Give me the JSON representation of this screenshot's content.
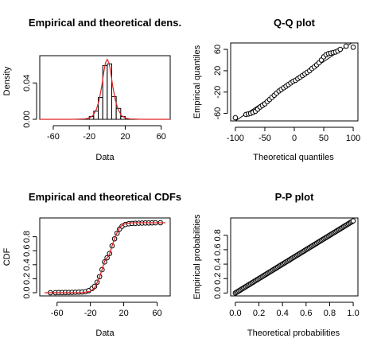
{
  "chart_data": [
    {
      "type": "bar",
      "title": "Empirical and theoretical dens.",
      "xlabel": "Data",
      "ylabel": "Density",
      "xlim": [
        -75,
        70
      ],
      "ylim": [
        0,
        0.07
      ],
      "xticks": [
        "-60",
        "-20",
        "20",
        "60"
      ],
      "yticks": [
        "0.00",
        "0.04"
      ],
      "histogram": {
        "bin_width": 5,
        "bins": [
          {
            "from": -20,
            "to": -15,
            "density": 0.003
          },
          {
            "from": -15,
            "to": -10,
            "density": 0.009
          },
          {
            "from": -10,
            "to": -5,
            "density": 0.024
          },
          {
            "from": -5,
            "to": 0,
            "density": 0.059
          },
          {
            "from": 0,
            "to": 5,
            "density": 0.061
          },
          {
            "from": 5,
            "to": 10,
            "density": 0.025
          },
          {
            "from": 10,
            "to": 15,
            "density": 0.012
          },
          {
            "from": 15,
            "to": 20,
            "density": 0.003
          }
        ]
      },
      "density_curve": {
        "color": "#e02020",
        "x": [
          -75,
          -40,
          -25,
          -20,
          -16,
          -12,
          -9,
          -6,
          -4,
          -2,
          0,
          2,
          4,
          6,
          9,
          12,
          16,
          20,
          25,
          40,
          70
        ],
        "y": [
          0,
          0,
          0.0005,
          0.0015,
          0.004,
          0.011,
          0.021,
          0.037,
          0.051,
          0.062,
          0.066,
          0.062,
          0.051,
          0.037,
          0.021,
          0.011,
          0.004,
          0.0015,
          0.0005,
          0,
          0
        ]
      }
    },
    {
      "type": "scatter",
      "title": "Q-Q plot",
      "xlabel": "Theoretical quantiles",
      "ylabel": "Empirical quantiles",
      "xlim": [
        -108,
        108
      ],
      "ylim": [
        -74,
        72
      ],
      "xticks": [
        "-100",
        "-50",
        "0",
        "50",
        "100"
      ],
      "yticks": [
        "-60",
        "-20",
        "20",
        "60"
      ],
      "points": [
        [
          -100,
          -68
        ],
        [
          -82,
          -62
        ],
        [
          -78,
          -61
        ],
        [
          -74,
          -60
        ],
        [
          -70,
          -58
        ],
        [
          -66,
          -56
        ],
        [
          -62,
          -52
        ],
        [
          -58,
          -48
        ],
        [
          -54,
          -45
        ],
        [
          -50,
          -42
        ],
        [
          -46,
          -38
        ],
        [
          -42,
          -34
        ],
        [
          -38,
          -30
        ],
        [
          -34,
          -26
        ],
        [
          -30,
          -22
        ],
        [
          -26,
          -18
        ],
        [
          -22,
          -15
        ],
        [
          -18,
          -12
        ],
        [
          -14,
          -9
        ],
        [
          -10,
          -6
        ],
        [
          -6,
          -3
        ],
        [
          -2,
          0
        ],
        [
          2,
          2
        ],
        [
          6,
          5
        ],
        [
          10,
          8
        ],
        [
          14,
          11
        ],
        [
          18,
          14
        ],
        [
          22,
          17
        ],
        [
          26,
          20
        ],
        [
          30,
          24
        ],
        [
          34,
          27
        ],
        [
          38,
          31
        ],
        [
          42,
          35
        ],
        [
          46,
          40
        ],
        [
          50,
          46
        ],
        [
          54,
          50
        ],
        [
          58,
          52
        ],
        [
          62,
          53
        ],
        [
          66,
          54
        ],
        [
          70,
          55
        ],
        [
          74,
          57
        ],
        [
          78,
          60
        ],
        [
          88,
          66
        ],
        [
          100,
          64
        ]
      ],
      "reference_line": {
        "x": [
          -108,
          108
        ],
        "y": [
          -80,
          80
        ]
      }
    },
    {
      "type": "line",
      "title": "Empirical and theoretical CDFs",
      "xlabel": "Data",
      "ylabel": "CDF",
      "xlim": [
        -75,
        70
      ],
      "ylim": [
        0,
        1
      ],
      "xticks": [
        "-60",
        "-20",
        "20",
        "60"
      ],
      "yticks": [
        "0.0",
        "0.2",
        "0.4",
        "0.6",
        "0.8"
      ],
      "theoretical_cdf": {
        "color": "#e02020",
        "x": [
          -75,
          -30,
          -20,
          -15,
          -10,
          -6,
          -3,
          0,
          3,
          6,
          10,
          15,
          20,
          30,
          70
        ],
        "y": [
          0,
          0.0,
          0.02,
          0.07,
          0.19,
          0.33,
          0.45,
          0.5,
          0.55,
          0.67,
          0.81,
          0.93,
          0.98,
          1.0,
          1.0
        ]
      },
      "empirical_points": {
        "x": [
          -68,
          -62,
          -58,
          -54,
          -50,
          -46,
          -42,
          -38,
          -34,
          -30,
          -26,
          -22,
          -18,
          -15,
          -12,
          -9,
          -6,
          -3,
          0,
          3,
          6,
          9,
          12,
          15,
          18,
          22,
          26,
          30,
          34,
          38,
          42,
          46,
          50,
          54,
          58,
          64
        ],
        "y": [
          0.0,
          0.001,
          0.002,
          0.002,
          0.003,
          0.004,
          0.005,
          0.006,
          0.008,
          0.01,
          0.015,
          0.03,
          0.06,
          0.09,
          0.15,
          0.23,
          0.33,
          0.44,
          0.5,
          0.56,
          0.67,
          0.77,
          0.85,
          0.91,
          0.95,
          0.975,
          0.985,
          0.99,
          0.992,
          0.994,
          0.995,
          0.996,
          0.997,
          0.998,
          0.999,
          1.0
        ]
      }
    },
    {
      "type": "scatter",
      "title": "P-P plot",
      "xlabel": "Theoretical probabilities",
      "ylabel": "Empirical probabilities",
      "xlim": [
        -0.04,
        1.04
      ],
      "ylim": [
        -0.04,
        1.04
      ],
      "xticks": [
        "0.0",
        "0.2",
        "0.4",
        "0.6",
        "0.8",
        "1.0"
      ],
      "yticks": [
        "0.0",
        "0.2",
        "0.4",
        "0.6",
        "0.8"
      ],
      "points_from": 0,
      "points_to": 1,
      "point_count": 101
    }
  ]
}
